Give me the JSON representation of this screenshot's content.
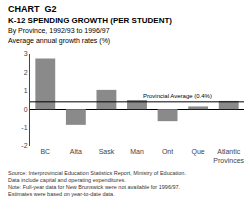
{
  "chart_data": {
    "type": "bar",
    "title": "CHART  G2",
    "subtitle": [
      "K-12 SPENDING GROWTH (PER STUDENT)",
      "By Province, 1992/93 to 1996/97"
    ],
    "ylabel": "Average annual growth rates (%)",
    "categories": [
      "BC",
      "Alta",
      "Sask",
      "Man",
      "Ont",
      "Que",
      "Atlantic\nProvinces"
    ],
    "values": [
      2.75,
      -0.85,
      1.05,
      0.5,
      -0.65,
      0.15,
      0.45
    ],
    "color": "#8a8a8a",
    "ylim": [
      -2,
      3
    ],
    "yticks": [
      -2,
      -1,
      0,
      1,
      2,
      3
    ],
    "grid": false,
    "annotations": [
      {
        "text": "Provincial Average (0.4%)",
        "value": 0.4
      },
      {
        "text": "Source: Interprovincial Education Statistics Report, Ministry of Education. Data include capital and operating expenditures.\nNote: Full-year data for New Brunswick were not available for 1996/97. Estimates were based on year-to-date data."
      }
    ]
  }
}
